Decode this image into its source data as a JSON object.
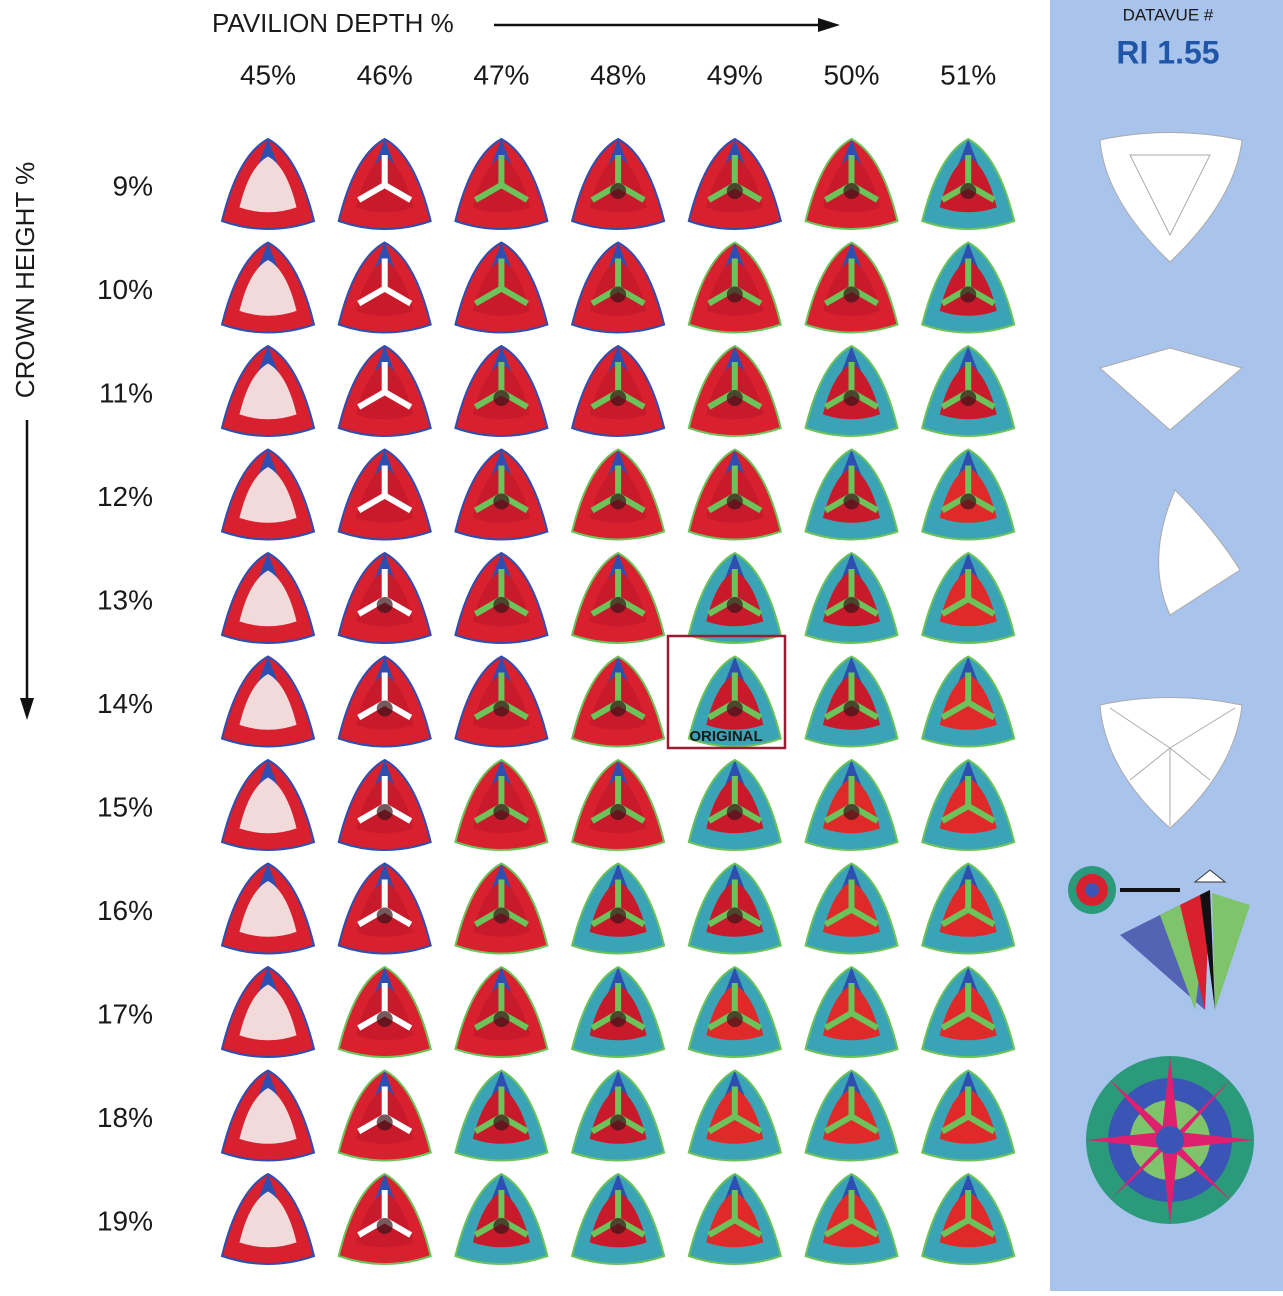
{
  "header": {
    "title": "PAVILION DEPTH %",
    "y_axis_title": "CROWN HEIGHT %"
  },
  "columns": [
    "45%",
    "46%",
    "47%",
    "48%",
    "49%",
    "50%",
    "51%"
  ],
  "rows": [
    "9%",
    "10%",
    "11%",
    "12%",
    "13%",
    "14%",
    "15%",
    "16%",
    "17%",
    "18%",
    "19%"
  ],
  "highlight": {
    "label": "ORIGINAL"
  },
  "sidebar": {
    "label": "DATAVUE #",
    "ri": "RI 1.55"
  }
}
